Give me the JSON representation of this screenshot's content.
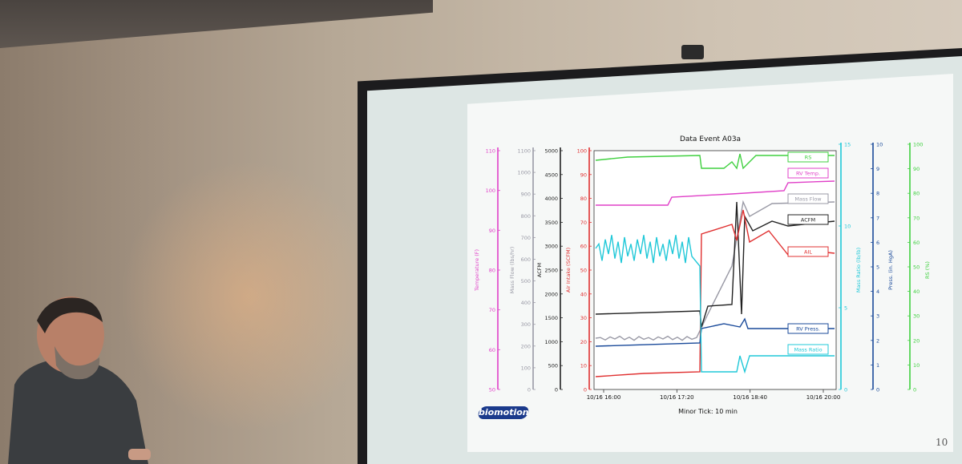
{
  "slide": {
    "title": "Data Event A03a",
    "page_number": "10",
    "footer": "Minor Tick: 10 min",
    "logo_text": "biomotion"
  },
  "axes_left": [
    {
      "label": "Temperature (F)",
      "color": "#e040c8",
      "ticks": [
        "110",
        "100",
        "90",
        "80",
        "70",
        "60",
        "50"
      ]
    },
    {
      "label": "Mass Flow (lbs/hr)",
      "color": "#9a9aa6",
      "ticks": [
        "1100",
        "1000",
        "900",
        "800",
        "700",
        "600",
        "500",
        "400",
        "300",
        "200",
        "100",
        "0"
      ]
    },
    {
      "label": "ACFM",
      "color": "#222222",
      "ticks": [
        "5000",
        "4500",
        "4000",
        "3500",
        "3000",
        "2500",
        "2000",
        "1500",
        "1000",
        "500",
        "0"
      ]
    },
    {
      "label": "Air Intake (SCFM)",
      "color": "#e03030",
      "ticks": [
        "100",
        "90",
        "80",
        "70",
        "60",
        "50",
        "40",
        "30",
        "20",
        "10",
        "0"
      ]
    }
  ],
  "axes_right": [
    {
      "label": "Mass Ratio (lb/lb)",
      "color": "#20c8d8",
      "ticks": [
        "15",
        "10",
        "5",
        "0"
      ]
    },
    {
      "label": "Press. (in. HgA)",
      "color": "#1a4a9a",
      "ticks": [
        "10",
        "9",
        "8",
        "7",
        "6",
        "5",
        "4",
        "3",
        "2",
        "1",
        "0"
      ]
    },
    {
      "label": "RS (%)",
      "color": "#40d040",
      "ticks": [
        "100",
        "90",
        "80",
        "70",
        "60",
        "50",
        "40",
        "30",
        "20",
        "10",
        "0"
      ]
    }
  ],
  "x_ticks": [
    "10/16 16:00",
    "10/16 17:20",
    "10/16 18:40",
    "10/16 20:00"
  ],
  "series_labels": [
    {
      "name": "RS",
      "color": "#40d040"
    },
    {
      "name": "RV Temp.",
      "color": "#e040c8"
    },
    {
      "name": "Mass Flow",
      "color": "#9a9aa6"
    },
    {
      "name": "ACFM",
      "color": "#222222"
    },
    {
      "name": "AIL",
      "color": "#e03030"
    },
    {
      "name": "RV Press.",
      "color": "#1a4a9a"
    },
    {
      "name": "Mass Ratio",
      "color": "#20c8d8"
    }
  ]
}
